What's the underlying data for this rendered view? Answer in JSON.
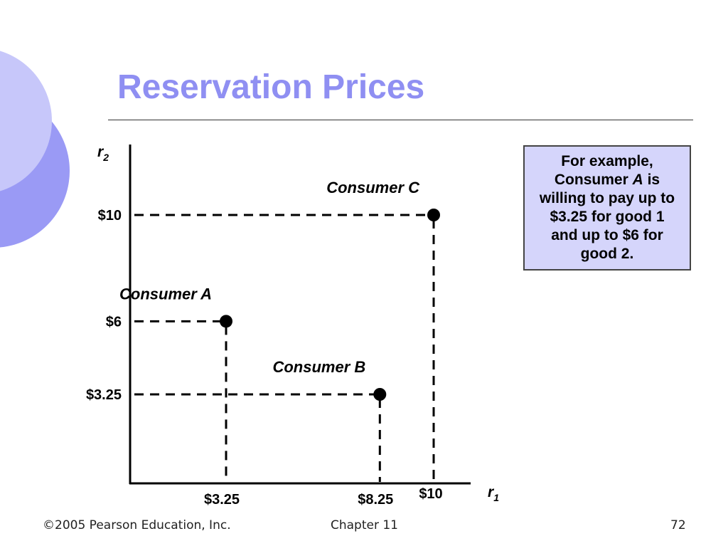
{
  "slide": {
    "title": "Reservation Prices",
    "title_color": "#8f8ff2",
    "callout": {
      "line1": "For example,",
      "line2_pre": "Consumer ",
      "line2_em": "A",
      "line2_post": " is",
      "line3": "willing to pay up to",
      "line4": "$3.25 for good 1",
      "line5": "and up to $6 for",
      "line6": "good 2.",
      "fill": "#d5d5fb"
    },
    "footer": {
      "copyright": "©2005 Pearson Education, Inc.",
      "chapter": "Chapter 11",
      "page": "72"
    },
    "decor_colors": [
      "#9a9af5",
      "#c7c7fa"
    ]
  },
  "chart_data": {
    "type": "scatter",
    "xlabel": "r",
    "xlabel_sub": "1",
    "ylabel": "r",
    "ylabel_sub": "2",
    "xlim": [
      0,
      11
    ],
    "ylim": [
      0,
      11
    ],
    "xticks": [
      {
        "value": 3.25,
        "label": "$3.25"
      },
      {
        "value": 8.25,
        "label": "$8.25"
      },
      {
        "value": 10,
        "label": "$10"
      }
    ],
    "yticks": [
      {
        "value": 3.25,
        "label": "$3.25"
      },
      {
        "value": 6,
        "label": "$6"
      },
      {
        "value": 10,
        "label": "$10"
      }
    ],
    "points": [
      {
        "name": "Consumer A",
        "x": 3.25,
        "y": 6
      },
      {
        "name": "Consumer B",
        "x": 8.25,
        "y": 3.25
      },
      {
        "name": "Consumer C",
        "x": 10,
        "y": 10
      }
    ],
    "guide_lines": "dashed",
    "grid": false
  }
}
